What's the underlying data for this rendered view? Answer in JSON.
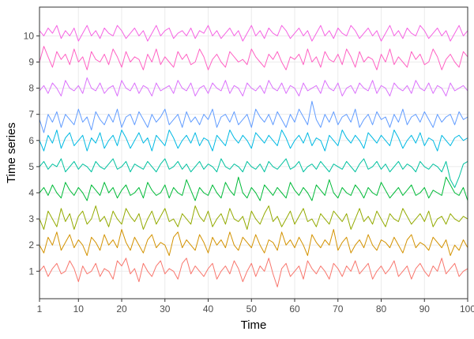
{
  "chart_data": {
    "type": "line",
    "title": "",
    "xlabel": "Time",
    "ylabel": "Time series",
    "xlim": [
      1,
      100
    ],
    "ylim": [
      -0.05,
      11.1
    ],
    "x_ticks": [
      1,
      10,
      20,
      30,
      40,
      50,
      60,
      70,
      80,
      90,
      100
    ],
    "y_ticks": [
      1,
      2,
      3,
      4,
      5,
      6,
      7,
      8,
      9,
      10
    ],
    "grid": true,
    "legend": "none",
    "series": [
      {
        "color": "#F8766D",
        "values": [
          1.0,
          1.2,
          0.8,
          1.1,
          1.3,
          0.9,
          1.0,
          1.4,
          1.1,
          0.6,
          1.2,
          0.9,
          1.0,
          1.3,
          0.8,
          1.1,
          1.0,
          0.7,
          1.4,
          1.2,
          1.5,
          0.9,
          1.1,
          0.6,
          1.3,
          1.0,
          0.8,
          1.2,
          1.4,
          0.9,
          1.1,
          1.0,
          0.7,
          1.3,
          1.5,
          0.9,
          1.2,
          1.0,
          0.8,
          1.1,
          1.3,
          0.7,
          1.0,
          1.2,
          0.9,
          1.4,
          1.1,
          0.6,
          1.0,
          1.3,
          0.8,
          1.2,
          1.0,
          1.5,
          0.9,
          0.4,
          1.1,
          1.3,
          0.8,
          1.0,
          1.2,
          0.7,
          1.4,
          1.1,
          0.9,
          1.2,
          1.0,
          0.7,
          1.3,
          1.1,
          0.8,
          1.2,
          1.0,
          1.4,
          0.9,
          1.1,
          1.3,
          0.7,
          1.0,
          1.2,
          0.9,
          1.1,
          1.4,
          0.8,
          1.0,
          1.2,
          0.7,
          1.1,
          1.3,
          1.0,
          0.8,
          1.2,
          1.0,
          1.5,
          0.9,
          1.1,
          1.3,
          0.8,
          1.0,
          1.1
        ]
      },
      {
        "color": "#D39200",
        "values": [
          2.0,
          1.7,
          2.3,
          2.0,
          2.5,
          1.8,
          2.1,
          2.4,
          1.9,
          2.2,
          2.0,
          1.6,
          2.3,
          2.1,
          1.8,
          2.4,
          2.0,
          2.2,
          1.9,
          2.6,
          2.1,
          1.8,
          2.3,
          2.0,
          1.7,
          2.2,
          2.4,
          1.9,
          2.1,
          2.0,
          1.6,
          2.3,
          2.5,
          1.9,
          2.2,
          2.0,
          1.8,
          2.4,
          2.1,
          1.7,
          2.3,
          2.0,
          2.2,
          1.9,
          2.5,
          2.0,
          1.8,
          2.3,
          2.1,
          1.9,
          2.4,
          2.0,
          1.7,
          2.2,
          2.1,
          1.8,
          2.5,
          2.0,
          2.2,
          1.9,
          2.3,
          2.0,
          1.6,
          2.4,
          2.1,
          1.9,
          2.2,
          2.0,
          2.6,
          1.8,
          2.1,
          2.3,
          1.7,
          2.0,
          2.2,
          1.9,
          2.4,
          2.0,
          1.8,
          2.2,
          2.1,
          1.9,
          2.3,
          2.0,
          1.7,
          2.2,
          2.4,
          1.9,
          2.1,
          2.0,
          1.8,
          2.3,
          2.1,
          1.9,
          2.2,
          1.6,
          2.0,
          1.8,
          2.2,
          1.9
        ]
      },
      {
        "color": "#93AA00",
        "values": [
          3.0,
          2.6,
          3.3,
          3.0,
          2.7,
          3.4,
          2.9,
          3.2,
          2.6,
          3.1,
          3.3,
          2.8,
          3.0,
          3.5,
          2.9,
          3.1,
          2.7,
          3.3,
          3.0,
          2.8,
          3.4,
          3.1,
          2.9,
          3.2,
          2.6,
          3.0,
          3.3,
          2.8,
          3.1,
          3.4,
          2.9,
          3.0,
          2.7,
          3.2,
          3.0,
          2.8,
          3.5,
          3.1,
          2.9,
          3.3,
          2.7,
          3.0,
          3.2,
          2.8,
          3.4,
          3.0,
          2.9,
          3.1,
          2.6,
          3.3,
          3.0,
          2.8,
          3.2,
          3.5,
          2.9,
          3.1,
          2.7,
          3.0,
          3.3,
          2.8,
          3.1,
          3.4,
          2.9,
          3.0,
          2.7,
          3.2,
          3.0,
          2.8,
          3.3,
          3.1,
          2.9,
          3.2,
          2.6,
          3.0,
          3.4,
          2.9,
          3.1,
          2.8,
          3.3,
          3.0,
          2.7,
          3.2,
          3.0,
          2.9,
          3.4,
          3.1,
          2.8,
          3.0,
          3.2,
          2.9,
          3.3,
          2.7,
          3.0,
          3.1,
          2.8,
          3.2,
          3.0,
          2.9,
          3.1,
          3.0
        ]
      },
      {
        "color": "#00BA38",
        "values": [
          4.0,
          4.2,
          3.9,
          4.3,
          4.0,
          3.8,
          4.4,
          4.1,
          3.9,
          4.2,
          4.0,
          3.7,
          4.3,
          4.1,
          3.9,
          4.4,
          4.0,
          4.2,
          3.8,
          4.1,
          4.3,
          3.9,
          4.0,
          4.2,
          3.8,
          4.4,
          4.1,
          3.9,
          4.0,
          4.3,
          3.8,
          4.2,
          4.0,
          3.9,
          4.5,
          4.1,
          3.7,
          4.2,
          4.0,
          3.9,
          4.3,
          4.0,
          3.8,
          4.4,
          4.1,
          3.9,
          4.6,
          4.0,
          3.8,
          4.2,
          4.0,
          3.7,
          4.3,
          4.1,
          3.9,
          4.2,
          4.0,
          3.8,
          4.4,
          4.1,
          3.9,
          4.2,
          4.0,
          3.7,
          4.3,
          4.1,
          3.9,
          4.5,
          4.0,
          3.8,
          4.2,
          4.0,
          3.9,
          4.3,
          4.1,
          3.8,
          4.2,
          4.0,
          3.9,
          4.4,
          4.1,
          3.8,
          4.0,
          4.2,
          3.9,
          4.1,
          4.3,
          3.9,
          4.0,
          4.2,
          3.8,
          4.1,
          4.0,
          3.9,
          4.6,
          4.3,
          4.0,
          3.9,
          4.2,
          3.7
        ]
      },
      {
        "color": "#00C19F",
        "values": [
          5.0,
          5.2,
          4.9,
          5.1,
          5.0,
          5.3,
          4.8,
          5.0,
          5.2,
          4.9,
          5.1,
          5.0,
          4.8,
          5.2,
          5.0,
          4.9,
          5.1,
          5.3,
          4.9,
          5.0,
          5.2,
          4.8,
          5.1,
          5.0,
          4.9,
          5.2,
          5.0,
          4.8,
          5.1,
          5.3,
          4.9,
          5.0,
          5.2,
          4.9,
          5.1,
          4.8,
          5.0,
          5.2,
          4.9,
          5.1,
          5.0,
          4.8,
          5.3,
          5.0,
          4.9,
          5.1,
          5.0,
          4.8,
          5.2,
          5.0,
          4.9,
          5.1,
          4.8,
          5.2,
          5.0,
          4.9,
          5.1,
          5.3,
          4.9,
          5.0,
          5.2,
          4.8,
          5.0,
          5.1,
          4.9,
          5.2,
          5.0,
          4.8,
          5.1,
          5.0,
          4.9,
          5.2,
          5.0,
          4.8,
          5.1,
          5.3,
          4.9,
          5.0,
          5.2,
          4.9,
          5.1,
          4.8,
          5.0,
          5.2,
          4.9,
          5.1,
          5.0,
          4.8,
          5.2,
          5.0,
          4.9,
          5.1,
          5.0,
          4.8,
          5.2,
          4.5,
          4.2,
          4.6,
          5.1,
          5.2
        ]
      },
      {
        "color": "#00B9E3",
        "values": [
          6.0,
          5.6,
          6.2,
          5.9,
          6.4,
          5.7,
          6.1,
          6.3,
          5.8,
          6.0,
          6.2,
          5.6,
          6.1,
          5.9,
          6.3,
          5.7,
          6.0,
          6.2,
          5.8,
          6.4,
          6.1,
          5.7,
          6.0,
          6.3,
          5.9,
          6.1,
          5.6,
          6.2,
          6.0,
          5.8,
          6.4,
          6.1,
          5.7,
          6.0,
          6.2,
          5.9,
          6.3,
          5.8,
          6.1,
          6.0,
          5.6,
          6.2,
          6.0,
          5.8,
          6.4,
          6.1,
          5.9,
          6.2,
          6.0,
          5.7,
          6.3,
          6.1,
          5.9,
          6.2,
          6.0,
          5.8,
          6.4,
          6.1,
          5.7,
          6.0,
          6.2,
          5.9,
          6.3,
          5.8,
          6.1,
          6.0,
          5.6,
          6.2,
          6.0,
          5.8,
          6.4,
          6.1,
          5.9,
          6.2,
          6.0,
          5.7,
          6.3,
          6.1,
          5.9,
          6.2,
          6.0,
          5.8,
          6.4,
          6.1,
          5.7,
          6.0,
          6.2,
          5.9,
          6.3,
          5.8,
          6.1,
          6.0,
          5.6,
          6.2,
          6.0,
          5.8,
          6.1,
          6.2,
          6.0,
          6.1
        ]
      },
      {
        "color": "#619CFF",
        "values": [
          6.8,
          6.3,
          7.0,
          6.7,
          7.1,
          6.5,
          7.0,
          6.8,
          6.6,
          7.2,
          6.7,
          6.9,
          6.4,
          7.1,
          6.8,
          6.6,
          7.0,
          6.7,
          7.2,
          6.5,
          6.9,
          7.0,
          6.6,
          7.1,
          6.8,
          6.5,
          7.0,
          6.7,
          6.9,
          7.2,
          6.6,
          6.8,
          7.0,
          6.5,
          7.1,
          6.7,
          6.9,
          6.6,
          7.0,
          6.8,
          7.2,
          6.5,
          6.9,
          7.0,
          6.7,
          7.1,
          6.6,
          6.8,
          7.0,
          6.5,
          7.2,
          6.9,
          6.7,
          7.0,
          6.6,
          7.1,
          6.8,
          6.5,
          7.0,
          6.7,
          7.2,
          6.9,
          6.6,
          7.5,
          6.8,
          6.5,
          7.0,
          6.7,
          7.1,
          6.6,
          6.9,
          7.0,
          6.7,
          7.2,
          6.5,
          6.8,
          7.0,
          6.6,
          7.1,
          6.8,
          6.9,
          6.5,
          7.0,
          6.7,
          7.2,
          6.6,
          6.9,
          7.0,
          6.7,
          7.1,
          6.8,
          6.5,
          7.0,
          6.7,
          6.9,
          7.0,
          6.6,
          7.1,
          6.8,
          6.9
        ]
      },
      {
        "color": "#DB72FB",
        "values": [
          7.9,
          8.1,
          7.8,
          8.2,
          8.0,
          7.7,
          8.3,
          8.0,
          7.9,
          8.1,
          7.8,
          8.4,
          8.0,
          7.9,
          8.2,
          7.8,
          8.0,
          8.1,
          7.7,
          8.3,
          8.0,
          7.9,
          8.2,
          7.8,
          8.1,
          8.0,
          7.7,
          8.2,
          7.9,
          8.0,
          8.1,
          7.8,
          8.3,
          8.0,
          7.9,
          8.2,
          7.7,
          8.0,
          8.1,
          7.8,
          8.2,
          8.0,
          7.9,
          8.3,
          7.8,
          8.1,
          8.0,
          7.7,
          8.2,
          8.0,
          7.9,
          8.1,
          7.8,
          8.3,
          8.0,
          7.9,
          8.2,
          7.8,
          8.1,
          8.0,
          7.7,
          8.2,
          7.9,
          8.0,
          8.1,
          7.8,
          8.3,
          8.0,
          7.9,
          8.2,
          7.7,
          8.0,
          8.1,
          7.8,
          8.2,
          8.0,
          7.9,
          8.3,
          7.8,
          8.1,
          8.0,
          7.7,
          8.2,
          8.0,
          7.9,
          8.1,
          7.8,
          8.3,
          8.0,
          7.9,
          8.2,
          7.8,
          8.1,
          8.0,
          7.7,
          8.2,
          7.9,
          8.0,
          8.1,
          7.9
        ]
      },
      {
        "color": "#FF61C3",
        "values": [
          9.0,
          9.6,
          9.2,
          8.8,
          9.4,
          9.1,
          9.3,
          8.9,
          9.5,
          9.0,
          9.2,
          8.7,
          9.4,
          9.1,
          9.0,
          9.3,
          8.9,
          9.5,
          9.2,
          8.8,
          9.4,
          9.0,
          9.2,
          9.1,
          8.7,
          9.3,
          9.0,
          9.5,
          8.9,
          9.2,
          9.0,
          8.8,
          9.4,
          9.1,
          9.3,
          8.9,
          9.0,
          9.5,
          9.2,
          8.7,
          9.1,
          9.3,
          9.0,
          8.8,
          9.4,
          9.2,
          9.0,
          9.1,
          8.9,
          9.5,
          9.2,
          9.0,
          8.8,
          9.3,
          9.1,
          9.4,
          9.0,
          8.7,
          9.2,
          9.1,
          9.3,
          8.9,
          9.5,
          9.0,
          9.2,
          8.8,
          9.4,
          9.1,
          9.0,
          9.3,
          8.9,
          9.5,
          9.2,
          8.8,
          9.4,
          9.0,
          9.2,
          9.1,
          8.7,
          9.3,
          9.0,
          9.5,
          8.9,
          9.2,
          9.0,
          8.8,
          9.4,
          9.1,
          9.3,
          8.9,
          9.0,
          9.5,
          9.2,
          8.7,
          9.1,
          9.3,
          9.0,
          8.8,
          9.4,
          9.2
        ]
      },
      {
        "color": "#F564E3",
        "values": [
          10.2,
          10.0,
          10.3,
          10.1,
          10.4,
          9.9,
          10.2,
          10.0,
          10.3,
          9.8,
          10.1,
          10.4,
          10.0,
          10.2,
          9.9,
          10.3,
          10.1,
          10.0,
          10.4,
          10.2,
          9.9,
          10.1,
          10.3,
          10.0,
          10.2,
          9.8,
          10.1,
          10.4,
          10.0,
          10.2,
          10.3,
          9.9,
          10.1,
          10.2,
          10.0,
          10.3,
          9.9,
          10.2,
          10.1,
          10.4,
          10.0,
          10.2,
          9.9,
          10.1,
          10.3,
          10.0,
          10.2,
          9.8,
          10.1,
          10.4,
          10.0,
          10.2,
          9.9,
          10.3,
          10.1,
          10.0,
          10.4,
          10.2,
          9.9,
          10.1,
          10.3,
          10.0,
          10.2,
          9.8,
          10.1,
          10.4,
          10.0,
          10.2,
          9.9,
          10.3,
          10.1,
          10.0,
          10.4,
          10.2,
          9.9,
          10.1,
          10.3,
          10.0,
          10.2,
          9.8,
          10.1,
          10.4,
          10.0,
          10.2,
          9.9,
          10.3,
          10.1,
          10.0,
          10.4,
          10.2,
          9.9,
          10.1,
          10.3,
          10.0,
          10.2,
          9.8,
          10.1,
          10.4,
          10.0,
          10.2
        ]
      }
    ]
  }
}
